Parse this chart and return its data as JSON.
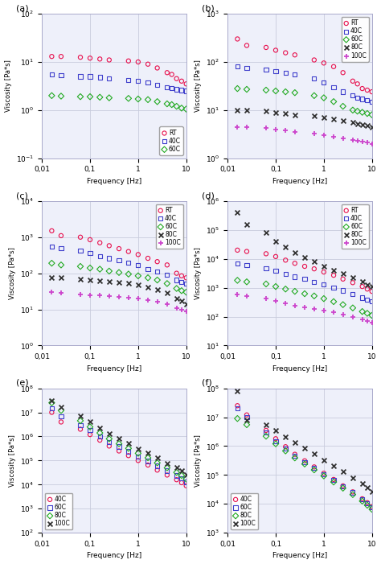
{
  "subplots": [
    {
      "label": "(a)",
      "ylim": [
        0.1,
        100
      ],
      "series": [
        {
          "name": "RT",
          "color": "#e8114e",
          "marker": "o",
          "fillstyle": "none",
          "x": [
            0.016,
            0.025,
            0.063,
            0.1,
            0.16,
            0.25,
            0.63,
            1.0,
            1.6,
            2.5,
            4.0,
            5.0,
            6.3,
            8.0,
            10.0
          ],
          "y": [
            13.0,
            13.0,
            12.5,
            12.0,
            11.5,
            11.0,
            10.5,
            10.0,
            9.0,
            7.5,
            6.0,
            5.5,
            4.5,
            4.0,
            3.5
          ]
        },
        {
          "name": "40C",
          "color": "#4040cc",
          "marker": "s",
          "fillstyle": "none",
          "x": [
            0.016,
            0.025,
            0.063,
            0.1,
            0.16,
            0.25,
            0.63,
            1.0,
            1.6,
            2.5,
            4.0,
            5.0,
            6.3,
            8.0,
            10.0
          ],
          "y": [
            5.5,
            5.3,
            5.0,
            5.0,
            4.8,
            4.5,
            4.2,
            4.0,
            3.7,
            3.3,
            3.0,
            2.9,
            2.7,
            2.6,
            2.5
          ]
        },
        {
          "name": "60C",
          "color": "#22aa22",
          "marker": "D",
          "fillstyle": "none",
          "x": [
            0.016,
            0.025,
            0.063,
            0.1,
            0.16,
            0.25,
            0.63,
            1.0,
            1.6,
            2.5,
            4.0,
            5.0,
            6.3,
            8.0,
            10.0
          ],
          "y": [
            2.0,
            1.95,
            1.9,
            1.9,
            1.85,
            1.8,
            1.75,
            1.7,
            1.65,
            1.5,
            1.35,
            1.3,
            1.2,
            1.1,
            1.05
          ]
        }
      ]
    },
    {
      "label": "(b)",
      "ylim": [
        1,
        1000
      ],
      "series": [
        {
          "name": "RT",
          "color": "#e8114e",
          "marker": "o",
          "fillstyle": "none",
          "x": [
            0.016,
            0.025,
            0.063,
            0.1,
            0.16,
            0.25,
            0.63,
            1.0,
            1.6,
            2.5,
            4.0,
            5.0,
            6.3,
            8.0,
            10.0
          ],
          "y": [
            300,
            220,
            200,
            175,
            155,
            140,
            110,
            95,
            80,
            60,
            40,
            35,
            28,
            26,
            24
          ]
        },
        {
          "name": "40C",
          "color": "#4040cc",
          "marker": "s",
          "fillstyle": "none",
          "x": [
            0.016,
            0.025,
            0.063,
            0.1,
            0.16,
            0.25,
            0.63,
            1.0,
            1.6,
            2.5,
            4.0,
            5.0,
            6.3,
            8.0,
            10.0
          ],
          "y": [
            80,
            75,
            70,
            65,
            60,
            55,
            45,
            38,
            30,
            24,
            20,
            18,
            17,
            16,
            15
          ]
        },
        {
          "name": "60C",
          "color": "#22aa22",
          "marker": "D",
          "fillstyle": "none",
          "x": [
            0.016,
            0.025,
            0.063,
            0.1,
            0.16,
            0.25,
            0.63,
            1.0,
            1.6,
            2.5,
            4.0,
            5.0,
            6.3,
            8.0,
            10.0
          ],
          "y": [
            28,
            27,
            26,
            25,
            24,
            23,
            20,
            18,
            15,
            12,
            10,
            9.5,
            9.0,
            8.5,
            8.0
          ]
        },
        {
          "name": "80C",
          "color": "#333333",
          "marker": "x",
          "fillstyle": "full",
          "x": [
            0.016,
            0.025,
            0.063,
            0.1,
            0.16,
            0.25,
            0.63,
            1.0,
            1.6,
            2.5,
            4.0,
            5.0,
            6.3,
            8.0,
            10.0
          ],
          "y": [
            10,
            10,
            9.5,
            9.0,
            8.5,
            8.0,
            7.5,
            7.0,
            6.5,
            6.0,
            5.5,
            5.2,
            5.0,
            4.8,
            4.5
          ]
        },
        {
          "name": "100C",
          "color": "#cc44cc",
          "marker": "+",
          "fillstyle": "full",
          "x": [
            0.016,
            0.025,
            0.063,
            0.1,
            0.16,
            0.25,
            0.63,
            1.0,
            1.6,
            2.5,
            4.0,
            5.0,
            6.3,
            8.0,
            10.0
          ],
          "y": [
            4.5,
            4.4,
            4.2,
            4.0,
            3.8,
            3.5,
            3.3,
            3.0,
            2.8,
            2.6,
            2.4,
            2.3,
            2.2,
            2.1,
            2.0
          ]
        }
      ]
    },
    {
      "label": "(c)",
      "ylim": [
        1,
        10000
      ],
      "series": [
        {
          "name": "RT",
          "color": "#e8114e",
          "marker": "o",
          "fillstyle": "none",
          "x": [
            0.016,
            0.025,
            0.063,
            0.1,
            0.16,
            0.25,
            0.4,
            0.63,
            1.0,
            1.6,
            2.5,
            4.0,
            6.3,
            8.0,
            10.0
          ],
          "y": [
            1500,
            1100,
            1000,
            850,
            700,
            580,
            480,
            400,
            330,
            260,
            210,
            170,
            100,
            85,
            75
          ]
        },
        {
          "name": "40C",
          "color": "#4040cc",
          "marker": "s",
          "fillstyle": "none",
          "x": [
            0.016,
            0.025,
            0.063,
            0.1,
            0.16,
            0.25,
            0.4,
            0.63,
            1.0,
            1.6,
            2.5,
            4.0,
            6.3,
            8.0,
            10.0
          ],
          "y": [
            550,
            500,
            420,
            360,
            300,
            260,
            230,
            200,
            165,
            130,
            110,
            90,
            65,
            58,
            52
          ]
        },
        {
          "name": "60C",
          "color": "#22aa22",
          "marker": "D",
          "fillstyle": "none",
          "x": [
            0.016,
            0.025,
            0.063,
            0.1,
            0.16,
            0.25,
            0.4,
            0.63,
            1.0,
            1.6,
            2.5,
            4.0,
            6.3,
            8.0,
            10.0
          ],
          "y": [
            190,
            170,
            155,
            140,
            130,
            115,
            105,
            95,
            85,
            75,
            65,
            52,
            38,
            33,
            30
          ]
        },
        {
          "name": "80C",
          "color": "#333333",
          "marker": "x",
          "fillstyle": "full",
          "x": [
            0.016,
            0.025,
            0.063,
            0.1,
            0.16,
            0.25,
            0.4,
            0.63,
            1.0,
            1.6,
            2.5,
            4.0,
            6.3,
            8.0,
            10.0
          ],
          "y": [
            75,
            75,
            70,
            65,
            62,
            58,
            55,
            52,
            48,
            42,
            36,
            28,
            20,
            17,
            14
          ]
        },
        {
          "name": "100C",
          "color": "#cc44cc",
          "marker": "+",
          "fillstyle": "full",
          "x": [
            0.016,
            0.025,
            0.063,
            0.1,
            0.16,
            0.25,
            0.4,
            0.63,
            1.0,
            1.6,
            2.5,
            4.0,
            6.3,
            8.0,
            10.0
          ],
          "y": [
            30,
            28,
            26,
            25,
            24,
            23,
            22,
            21,
            20,
            18,
            16,
            14,
            11,
            10,
            9
          ]
        }
      ]
    },
    {
      "label": "(d)",
      "ylim": [
        10,
        1000000
      ],
      "series": [
        {
          "name": "RT",
          "color": "#e8114e",
          "marker": "o",
          "fillstyle": "none",
          "x": [
            0.016,
            0.025,
            0.063,
            0.1,
            0.16,
            0.25,
            0.4,
            0.63,
            1.0,
            1.6,
            2.5,
            4.0,
            6.3,
            8.0,
            10.0
          ],
          "y": [
            20000,
            18000,
            15000,
            12000,
            9000,
            7000,
            5500,
            4500,
            3500,
            2700,
            2000,
            1500,
            1100,
            900,
            750
          ]
        },
        {
          "name": "40C",
          "color": "#4040cc",
          "marker": "s",
          "fillstyle": "none",
          "x": [
            0.016,
            0.025,
            0.063,
            0.1,
            0.16,
            0.25,
            0.4,
            0.63,
            1.0,
            1.6,
            2.5,
            4.0,
            6.3,
            8.0,
            10.0
          ],
          "y": [
            7000,
            6000,
            4800,
            3800,
            3000,
            2400,
            2000,
            1600,
            1300,
            1000,
            800,
            600,
            450,
            380,
            330
          ]
        },
        {
          "name": "60C",
          "color": "#22aa22",
          "marker": "D",
          "fillstyle": "none",
          "x": [
            0.016,
            0.025,
            0.063,
            0.1,
            0.16,
            0.25,
            0.4,
            0.63,
            1.0,
            1.6,
            2.5,
            4.0,
            6.3,
            8.0,
            10.0
          ],
          "y": [
            1800,
            1600,
            1350,
            1100,
            900,
            750,
            620,
            520,
            420,
            330,
            260,
            200,
            150,
            130,
            110
          ]
        },
        {
          "name": "80C",
          "color": "#333333",
          "marker": "x",
          "fillstyle": "full",
          "x": [
            0.016,
            0.025,
            0.063,
            0.1,
            0.16,
            0.25,
            0.4,
            0.63,
            1.0,
            1.6,
            2.5,
            4.0,
            6.3,
            8.0,
            10.0
          ],
          "y": [
            400000,
            150000,
            80000,
            40000,
            25000,
            16000,
            11000,
            8000,
            5500,
            4000,
            3000,
            2200,
            1600,
            1300,
            1100
          ]
        },
        {
          "name": "100C",
          "color": "#cc44cc",
          "marker": "+",
          "fillstyle": "full",
          "x": [
            0.016,
            0.025,
            0.063,
            0.1,
            0.16,
            0.25,
            0.4,
            0.63,
            1.0,
            1.6,
            2.5,
            4.0,
            6.3,
            8.0,
            10.0
          ],
          "y": [
            600,
            520,
            420,
            350,
            290,
            240,
            210,
            180,
            160,
            140,
            120,
            100,
            80,
            70,
            62
          ]
        }
      ]
    },
    {
      "label": "(e)",
      "ylim": [
        100,
        100000000
      ],
      "series": [
        {
          "name": "40C",
          "color": "#e8114e",
          "marker": "o",
          "fillstyle": "none",
          "x": [
            0.016,
            0.025,
            0.063,
            0.1,
            0.16,
            0.25,
            0.4,
            0.63,
            1.0,
            1.6,
            2.5,
            4.0,
            6.3,
            8.0,
            10.0
          ],
          "y": [
            10000000,
            4000000,
            2000000,
            1200000,
            700000,
            400000,
            250000,
            160000,
            100000,
            65000,
            40000,
            25000,
            16000,
            12000,
            9000
          ]
        },
        {
          "name": "60C",
          "color": "#4040cc",
          "marker": "s",
          "fillstyle": "none",
          "x": [
            0.016,
            0.025,
            0.063,
            0.1,
            0.16,
            0.25,
            0.4,
            0.63,
            1.0,
            1.6,
            2.5,
            4.0,
            6.3,
            8.0,
            10.0
          ],
          "y": [
            15000000,
            7000000,
            3000000,
            1800000,
            1000000,
            600000,
            380000,
            240000,
            150000,
            95000,
            60000,
            38000,
            24000,
            18000,
            13000
          ]
        },
        {
          "name": "80C",
          "color": "#22aa22",
          "marker": "D",
          "fillstyle": "none",
          "x": [
            0.016,
            0.025,
            0.063,
            0.1,
            0.16,
            0.25,
            0.4,
            0.63,
            1.0,
            1.6,
            2.5,
            4.0,
            6.3,
            8.0,
            10.0
          ],
          "y": [
            25000000,
            12000000,
            4500000,
            2500000,
            1400000,
            800000,
            500000,
            320000,
            200000,
            130000,
            80000,
            50000,
            32000,
            24000,
            17000
          ]
        },
        {
          "name": "100C",
          "color": "#333333",
          "marker": "x",
          "fillstyle": "full",
          "x": [
            0.016,
            0.025,
            0.063,
            0.1,
            0.16,
            0.25,
            0.4,
            0.63,
            1.0,
            1.6,
            2.5,
            4.0,
            6.3,
            8.0,
            10.0
          ],
          "y": [
            30000000,
            17000000,
            7000000,
            4000000,
            2200000,
            1300000,
            800000,
            500000,
            310000,
            200000,
            125000,
            78000,
            50000,
            37000,
            26000
          ]
        }
      ]
    },
    {
      "label": "(f)",
      "ylim": [
        1000,
        100000000
      ],
      "series": [
        {
          "name": "40C",
          "color": "#e8114e",
          "marker": "o",
          "fillstyle": "none",
          "x": [
            0.016,
            0.025,
            0.063,
            0.1,
            0.16,
            0.25,
            0.4,
            0.63,
            1.0,
            1.6,
            2.5,
            4.0,
            6.3,
            8.0,
            10.0
          ],
          "y": [
            25000000,
            12000000,
            3500000,
            1800000,
            950000,
            520000,
            310000,
            190000,
            115000,
            70000,
            42000,
            26000,
            15000,
            11000,
            8000
          ]
        },
        {
          "name": "60C",
          "color": "#4040cc",
          "marker": "s",
          "fillstyle": "none",
          "x": [
            0.016,
            0.025,
            0.063,
            0.1,
            0.16,
            0.25,
            0.4,
            0.63,
            1.0,
            1.6,
            2.5,
            4.0,
            6.3,
            8.0,
            10.0
          ],
          "y": [
            20000000,
            10000000,
            3000000,
            1500000,
            820000,
            460000,
            280000,
            175000,
            108000,
            66000,
            40000,
            25000,
            14500,
            10500,
            7500
          ]
        },
        {
          "name": "80C",
          "color": "#22aa22",
          "marker": "D",
          "fillstyle": "none",
          "x": [
            0.016,
            0.025,
            0.063,
            0.1,
            0.16,
            0.25,
            0.4,
            0.63,
            1.0,
            1.6,
            2.5,
            4.0,
            6.3,
            8.0,
            10.0
          ],
          "y": [
            9000000,
            5500000,
            2200000,
            1200000,
            680000,
            390000,
            240000,
            150000,
            93000,
            57000,
            35000,
            21000,
            12500,
            9000,
            6500
          ]
        },
        {
          "name": "100C",
          "color": "#333333",
          "marker": "x",
          "fillstyle": "full",
          "x": [
            0.016,
            0.025,
            0.063,
            0.1,
            0.16,
            0.25,
            0.4,
            0.63,
            1.0,
            1.6,
            2.5,
            4.0,
            6.3,
            8.0,
            10.0
          ],
          "y": [
            80000000,
            8000000,
            5500000,
            3500000,
            2100000,
            1300000,
            830000,
            530000,
            330000,
            210000,
            130000,
            80000,
            50000,
            36000,
            26000
          ]
        }
      ]
    }
  ],
  "xlabel": "Frequency [Hz]",
  "ylabel": "Viscosity [Pa*s]",
  "xlim": [
    0.01,
    10
  ],
  "bg_color": "#eef0fa",
  "grid_color": "#c8ccdd",
  "legend_positions": [
    "lower right",
    "upper right",
    "upper right",
    "upper right",
    "lower left",
    "lower left"
  ]
}
